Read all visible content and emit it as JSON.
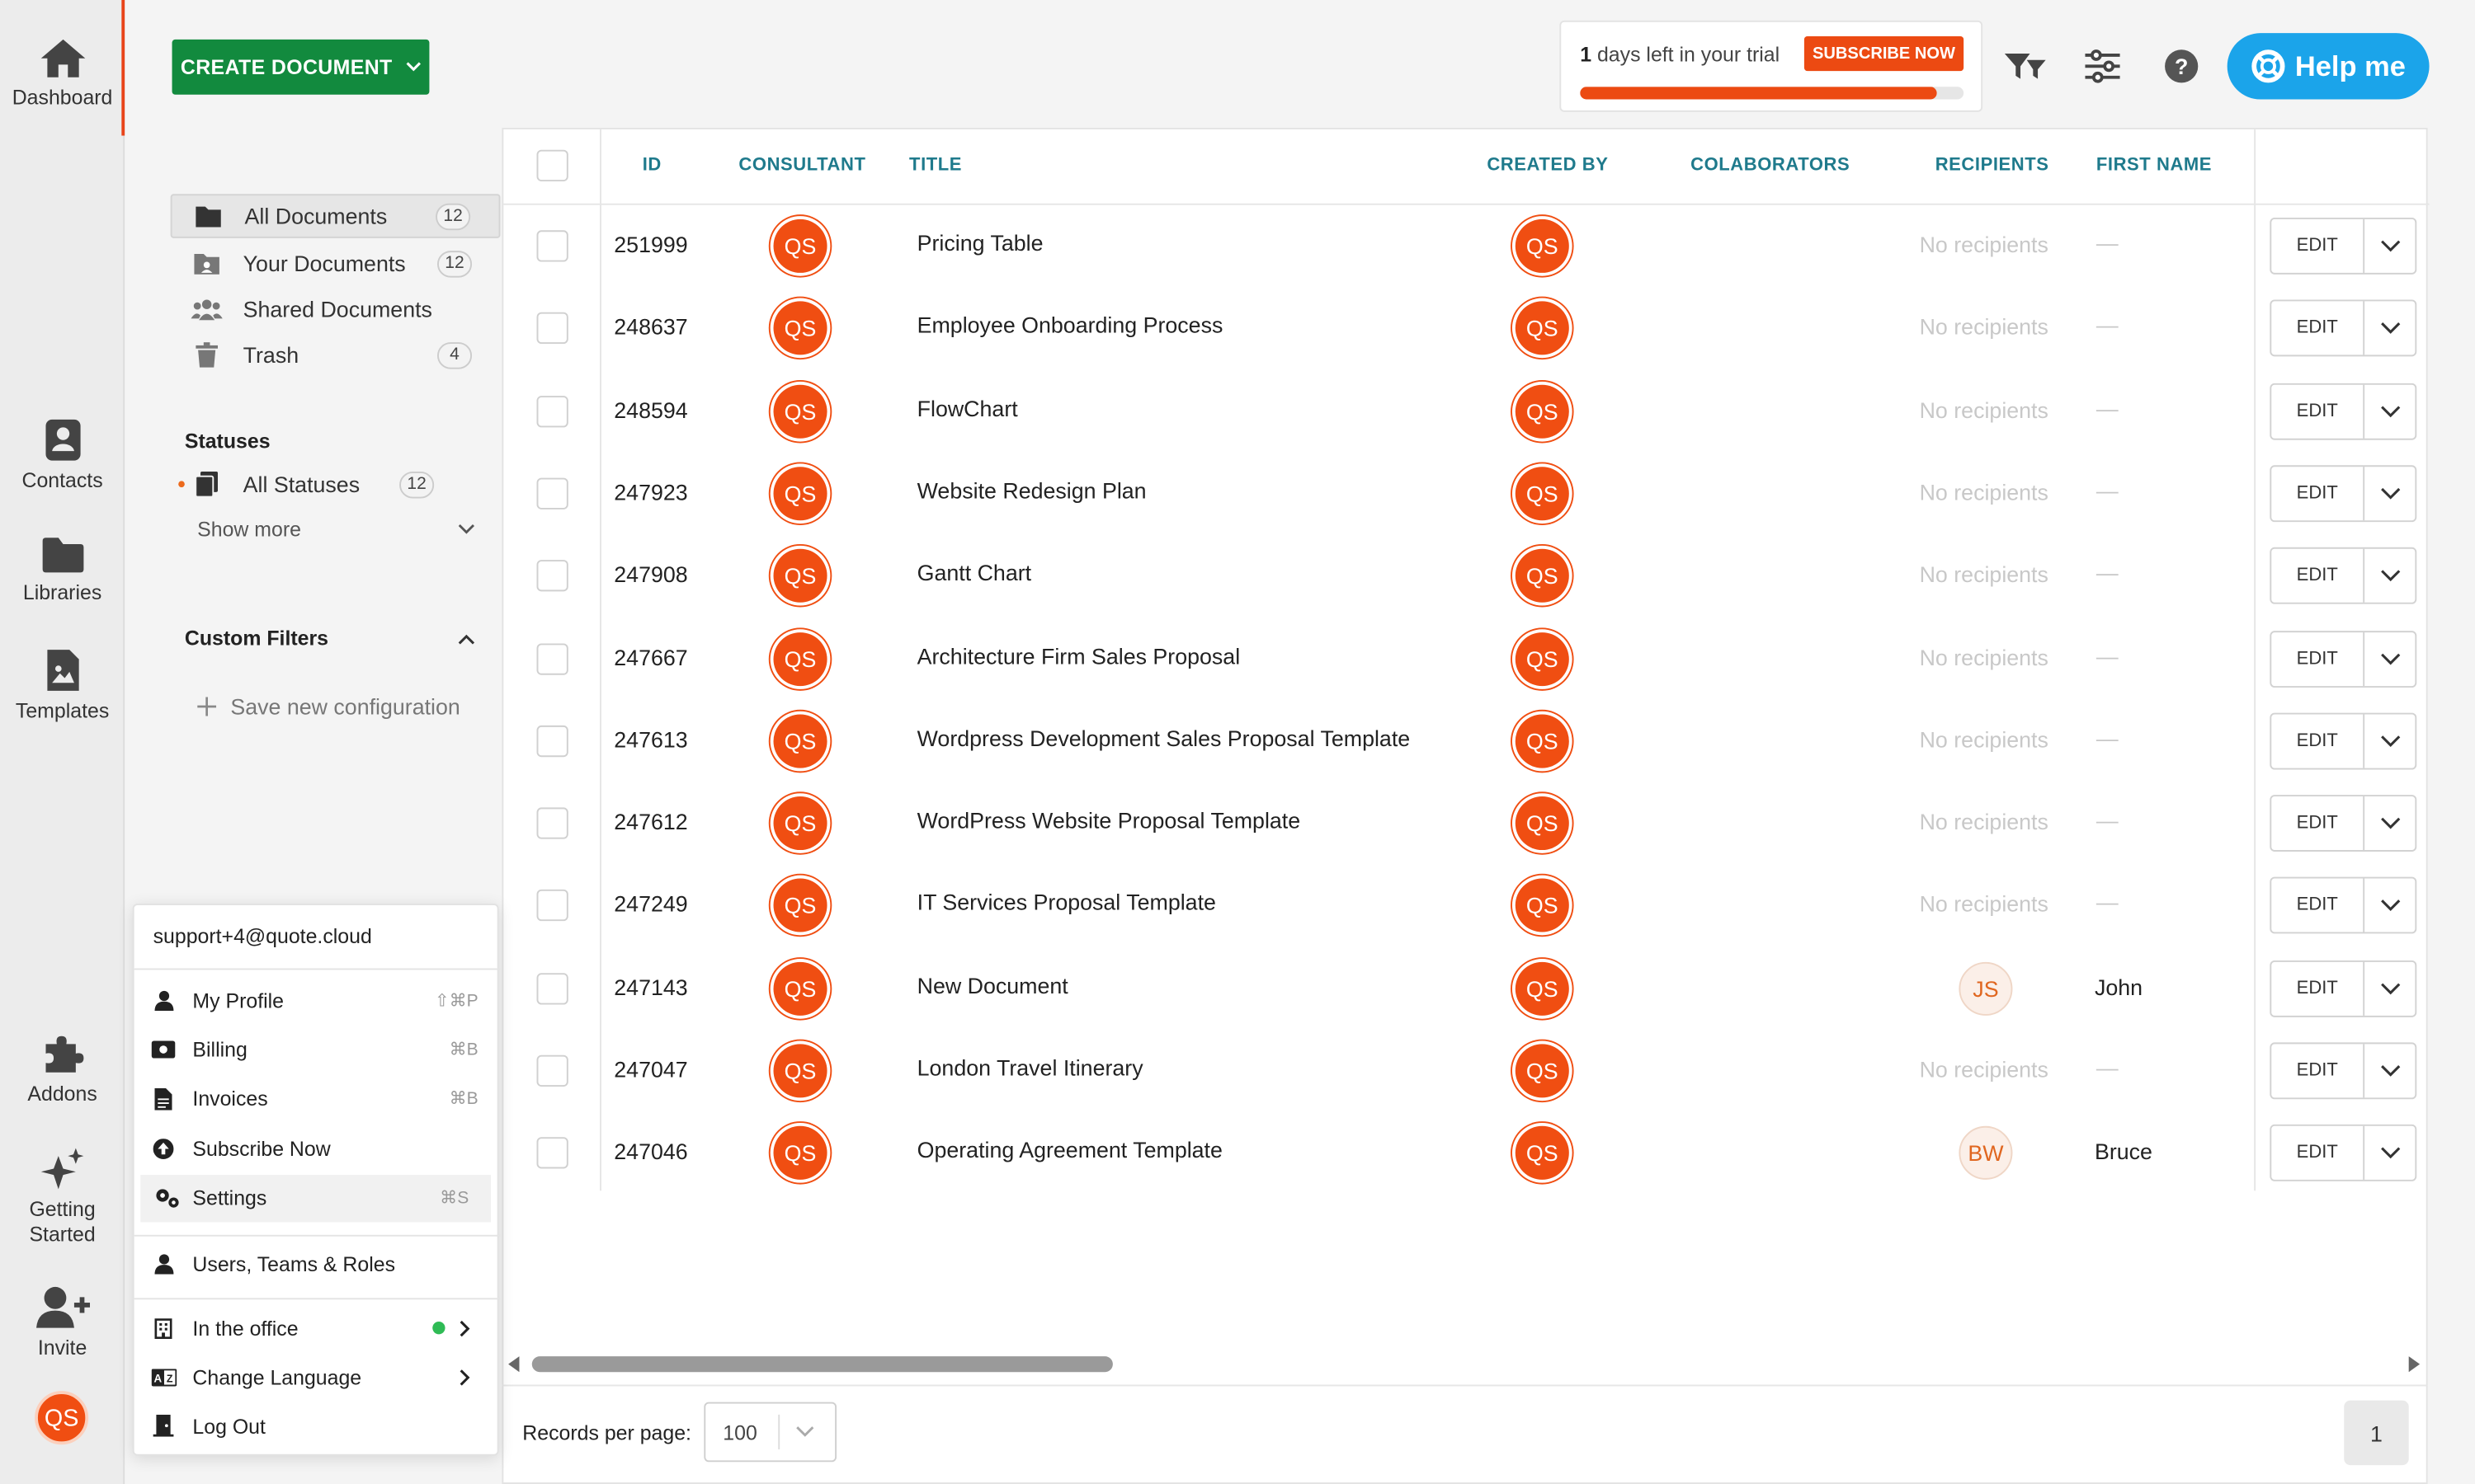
{
  "rail": {
    "items": [
      {
        "label": "Dashboard",
        "icon": "home-icon"
      },
      {
        "label": "Contacts",
        "icon": "contacts-icon"
      },
      {
        "label": "Libraries",
        "icon": "folder-icon"
      },
      {
        "label": "Templates",
        "icon": "template-icon"
      },
      {
        "label": "Addons",
        "icon": "puzzle-icon"
      },
      {
        "label": "Getting Started",
        "icon": "sparkle-icon"
      },
      {
        "label": "Invite",
        "icon": "add-user-icon"
      }
    ],
    "user_initials": "QS"
  },
  "toolbar": {
    "create_label": "CREATE DOCUMENT",
    "trial_days": "1",
    "trial_text": " days left in your trial",
    "subscribe_label": "SUBSCRIBE NOW",
    "trial_progress": 0.93,
    "help_label": "Help me"
  },
  "sidebar": {
    "documents": [
      {
        "label": "All Documents",
        "count": "12",
        "active": true
      },
      {
        "label": "Your Documents",
        "count": "12"
      },
      {
        "label": "Shared Documents",
        "count": ""
      },
      {
        "label": "Trash",
        "count": "4"
      }
    ],
    "statuses_title": "Statuses",
    "all_statuses": {
      "label": "All Statuses",
      "count": "12"
    },
    "show_more": "Show more",
    "custom_filters_title": "Custom Filters",
    "save_config": "Save new configuration"
  },
  "table": {
    "columns": [
      "ID",
      "CONSULTANT",
      "TITLE",
      "CREATED BY",
      "COLABORATORS",
      "RECIPIENTS",
      "FIRST NAME"
    ],
    "edit_label": "EDIT",
    "no_recipients": "No recipients",
    "dash": "—",
    "rows": [
      {
        "id": "251999",
        "consultant": "QS",
        "title": "Pricing Table",
        "created_by": "QS",
        "recipient": "",
        "first_name": ""
      },
      {
        "id": "248637",
        "consultant": "QS",
        "title": "Employee Onboarding Process",
        "created_by": "QS",
        "recipient": "",
        "first_name": ""
      },
      {
        "id": "248594",
        "consultant": "QS",
        "title": "FlowChart",
        "created_by": "QS",
        "recipient": "",
        "first_name": ""
      },
      {
        "id": "247923",
        "consultant": "QS",
        "title": "Website Redesign Plan",
        "created_by": "QS",
        "recipient": "",
        "first_name": ""
      },
      {
        "id": "247908",
        "consultant": "QS",
        "title": "Gantt Chart",
        "created_by": "QS",
        "recipient": "",
        "first_name": ""
      },
      {
        "id": "247667",
        "consultant": "QS",
        "title": "Architecture Firm Sales Proposal",
        "created_by": "QS",
        "recipient": "",
        "first_name": ""
      },
      {
        "id": "247613",
        "consultant": "QS",
        "title": "Wordpress Development Sales Proposal Template",
        "created_by": "QS",
        "recipient": "",
        "first_name": ""
      },
      {
        "id": "247612",
        "consultant": "QS",
        "title": "WordPress Website Proposal Template",
        "created_by": "QS",
        "recipient": "",
        "first_name": ""
      },
      {
        "id": "247249",
        "consultant": "QS",
        "title": "IT Services Proposal Template",
        "created_by": "QS",
        "recipient": "",
        "first_name": ""
      },
      {
        "id": "247143",
        "consultant": "QS",
        "title": "New Document",
        "created_by": "QS",
        "recipient": "JS",
        "first_name": "John"
      },
      {
        "id": "247047",
        "consultant": "QS",
        "title": "London Travel Itinerary",
        "created_by": "QS",
        "recipient": "",
        "first_name": ""
      },
      {
        "id": "247046",
        "consultant": "QS",
        "title": "Operating Agreement Template",
        "created_by": "QS",
        "recipient": "BW",
        "first_name": "Bruce"
      }
    ]
  },
  "footer": {
    "records_label": "Records per page:",
    "records_value": "100",
    "page": "1"
  },
  "user_menu": {
    "email": "support+4@quote.cloud",
    "items": [
      {
        "label": "My Profile",
        "shortcut": "⇧⌘P",
        "icon": "user-icon"
      },
      {
        "label": "Billing",
        "shortcut": "⌘B",
        "icon": "billing-icon"
      },
      {
        "label": "Invoices",
        "shortcut": "⌘B",
        "icon": "invoice-icon"
      },
      {
        "label": "Subscribe Now",
        "shortcut": "",
        "icon": "upload-circle-icon"
      },
      {
        "label": "Settings",
        "shortcut": "⌘S",
        "icon": "gears-icon"
      }
    ],
    "users_roles": "Users, Teams & Roles",
    "status_label": "In the office",
    "change_language": "Change Language",
    "logout": "Log Out"
  },
  "colors": {
    "accent": "#f04e12",
    "primary_green": "#128a3e",
    "help_blue": "#1ba4ea",
    "header_teal": "#1f7a8c"
  }
}
